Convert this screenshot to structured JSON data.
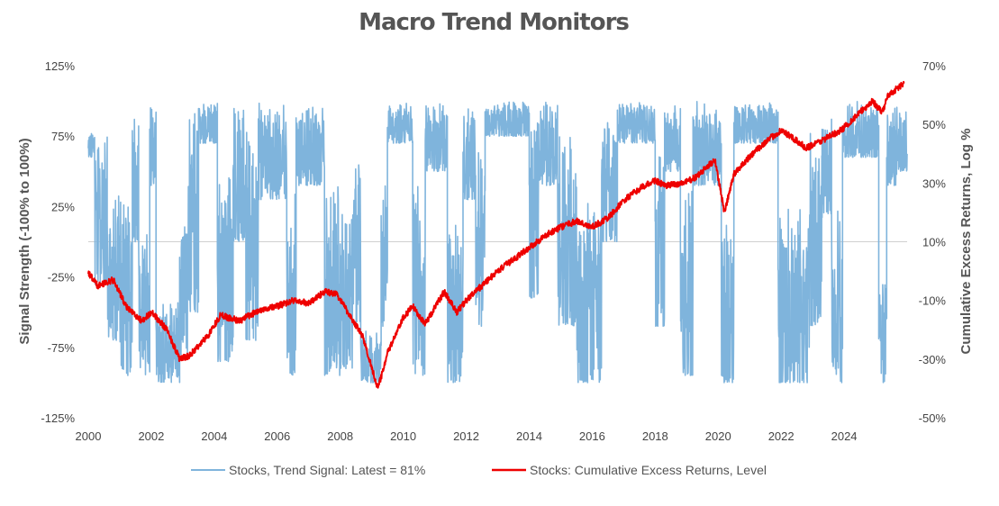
{
  "chart_data": {
    "type": "line",
    "title": "Macro Trend Monitors",
    "ylabel_left": "Signal Strength (-100% to 100%)",
    "ylabel_right": "Cumulative Excess Returns, Log %",
    "xlim": [
      2000,
      2026
    ],
    "ylim_left": [
      -125,
      125
    ],
    "ylim_right": [
      -50,
      70
    ],
    "x_ticks": [
      "2000",
      "2002",
      "2004",
      "2006",
      "2008",
      "2010",
      "2012",
      "2014",
      "2016",
      "2018",
      "2020",
      "2022",
      "2024"
    ],
    "y_left_ticks": [
      "125%",
      "75%",
      "25%",
      "-25%",
      "-75%",
      "-125%"
    ],
    "y_right_ticks": [
      "70%",
      "50%",
      "30%",
      "10%",
      "-10%",
      "-30%",
      "-50%"
    ],
    "zero_line": 0,
    "legend_position": "bottom",
    "colors": {
      "signal": "#7fb4dc",
      "returns": "#ee0000",
      "zero": "#d0d0d0"
    },
    "series": [
      {
        "name": "Stocks, Trend Signal: Latest = 81%",
        "axis": "left",
        "regimes": [
          [
            2000.0,
            2000.2,
            60,
            80
          ],
          [
            2000.2,
            2000.6,
            -30,
            85
          ],
          [
            2000.6,
            2001.0,
            -70,
            40
          ],
          [
            2001.0,
            2001.4,
            -95,
            30
          ],
          [
            2001.4,
            2001.6,
            0,
            95
          ],
          [
            2001.6,
            2001.95,
            -95,
            20
          ],
          [
            2001.95,
            2002.15,
            40,
            100
          ],
          [
            2002.15,
            2002.9,
            -100,
            -40
          ],
          [
            2002.9,
            2003.15,
            -80,
            30
          ],
          [
            2003.15,
            2003.5,
            -50,
            100
          ],
          [
            2003.5,
            2004.1,
            70,
            100
          ],
          [
            2004.1,
            2004.6,
            -85,
            60
          ],
          [
            2004.6,
            2005.0,
            0,
            100
          ],
          [
            2005.0,
            2005.4,
            -70,
            80
          ],
          [
            2005.4,
            2006.3,
            30,
            100
          ],
          [
            2006.3,
            2006.6,
            -95,
            40
          ],
          [
            2006.6,
            2007.5,
            40,
            100
          ],
          [
            2007.5,
            2008.0,
            -95,
            60
          ],
          [
            2008.0,
            2008.4,
            -90,
            30
          ],
          [
            2008.4,
            2008.65,
            -60,
            80
          ],
          [
            2008.65,
            2009.3,
            -100,
            -60
          ],
          [
            2009.3,
            2009.5,
            -60,
            40
          ],
          [
            2009.5,
            2010.3,
            70,
            100
          ],
          [
            2010.3,
            2010.7,
            -95,
            50
          ],
          [
            2010.7,
            2011.4,
            50,
            100
          ],
          [
            2011.4,
            2011.9,
            -100,
            20
          ],
          [
            2011.9,
            2012.3,
            30,
            100
          ],
          [
            2012.3,
            2012.6,
            -60,
            70
          ],
          [
            2012.6,
            2014.0,
            75,
            100
          ],
          [
            2014.0,
            2014.3,
            -40,
            90
          ],
          [
            2014.3,
            2014.9,
            40,
            100
          ],
          [
            2014.9,
            2015.5,
            -60,
            90
          ],
          [
            2015.5,
            2016.3,
            -100,
            40
          ],
          [
            2016.3,
            2016.8,
            0,
            100
          ],
          [
            2016.8,
            2018.0,
            70,
            100
          ],
          [
            2018.0,
            2018.3,
            -60,
            70
          ],
          [
            2018.3,
            2018.8,
            50,
            100
          ],
          [
            2018.8,
            2019.2,
            -95,
            40
          ],
          [
            2019.2,
            2020.1,
            40,
            100
          ],
          [
            2020.1,
            2020.5,
            -100,
            20
          ],
          [
            2020.5,
            2021.9,
            70,
            100
          ],
          [
            2021.9,
            2022.9,
            -100,
            30
          ],
          [
            2022.9,
            2023.3,
            -60,
            90
          ],
          [
            2023.3,
            2023.6,
            20,
            100
          ],
          [
            2023.6,
            2023.95,
            -100,
            40
          ],
          [
            2023.95,
            2025.1,
            60,
            100
          ],
          [
            2025.1,
            2025.35,
            -100,
            -20
          ],
          [
            2025.35,
            2025.7,
            40,
            100
          ],
          [
            2025.7,
            2026.0,
            50,
            95
          ]
        ]
      },
      {
        "name": "Stocks:  Cumulative Excess Returns, Level",
        "axis": "right",
        "x": [
          2000.0,
          2000.3,
          2000.8,
          2001.2,
          2001.7,
          2002.0,
          2002.5,
          2002.9,
          2003.2,
          2003.8,
          2004.2,
          2004.8,
          2005.5,
          2006.0,
          2006.5,
          2007.0,
          2007.5,
          2007.9,
          2008.3,
          2008.7,
          2009.2,
          2009.5,
          2010.0,
          2010.3,
          2010.7,
          2011.3,
          2011.7,
          2012.0,
          2012.5,
          2013.0,
          2013.5,
          2014.0,
          2014.5,
          2015.0,
          2015.5,
          2016.0,
          2016.5,
          2017.0,
          2017.5,
          2018.0,
          2018.3,
          2018.9,
          2019.3,
          2019.9,
          2020.2,
          2020.5,
          2020.9,
          2021.5,
          2022.0,
          2022.8,
          2023.2,
          2023.9,
          2024.3,
          2024.9,
          2025.2,
          2025.4,
          2025.9
        ],
        "y": [
          -0.5,
          -5,
          -3,
          -12,
          -17,
          -14,
          -20,
          -30,
          -29,
          -22,
          -15,
          -17,
          -13,
          -12,
          -10,
          -11,
          -7,
          -8,
          -15,
          -22,
          -40,
          -28,
          -16,
          -12,
          -18,
          -7,
          -14,
          -10,
          -5,
          0,
          4,
          8,
          12,
          15,
          17,
          15,
          18,
          24,
          28,
          31,
          29,
          30,
          32,
          38,
          20,
          33,
          38,
          44,
          48,
          42,
          44,
          48,
          52,
          58,
          54,
          60,
          64
        ]
      }
    ]
  }
}
